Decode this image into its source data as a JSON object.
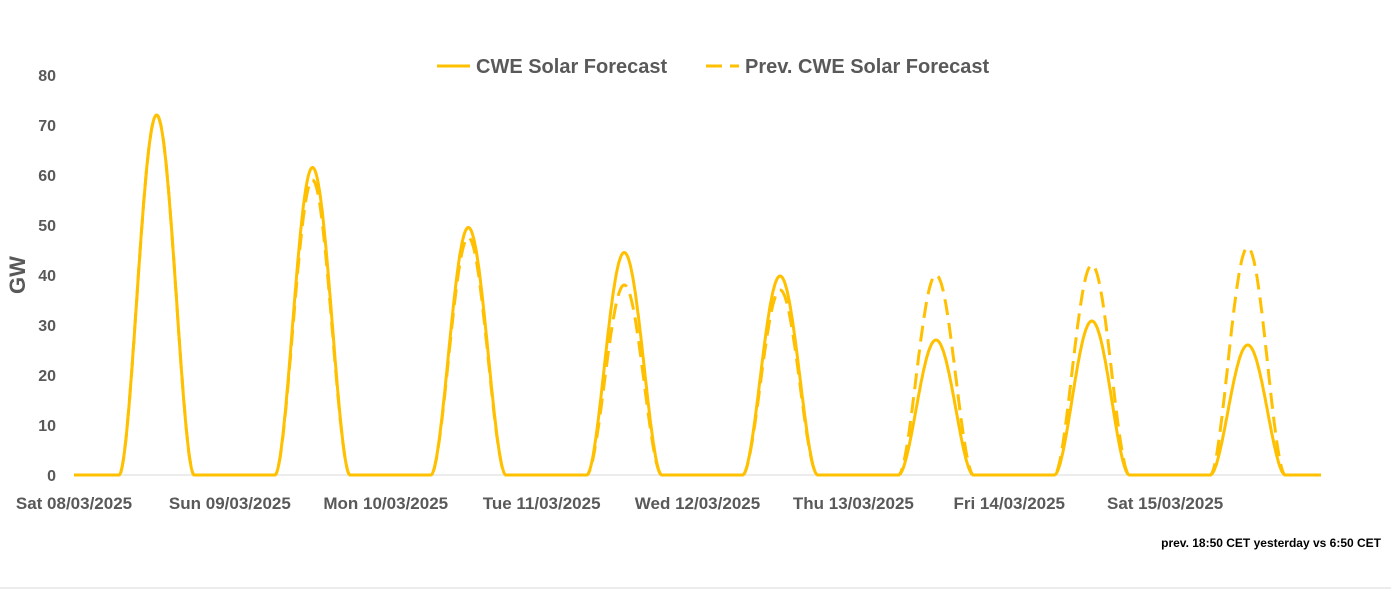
{
  "chart_data": {
    "type": "line",
    "ylabel": "GW",
    "ylim": [
      0,
      80
    ],
    "yticks": [
      0,
      10,
      20,
      30,
      40,
      50,
      60,
      70,
      80
    ],
    "x_ticks": [
      "Sat 08/03/2025",
      "Sun 09/03/2025",
      "Mon 10/03/2025",
      "Tue 11/03/2025",
      "Wed 12/03/2025",
      "Thu 13/03/2025",
      "Fri 14/03/2025",
      "Sat 15/03/2025"
    ],
    "xlim_days": 8,
    "grid": false,
    "legend_position": "top-center",
    "note": "prev. 18:50 CET yesterday vs  6:50 CET",
    "series": [
      {
        "name": "CWE Solar Forecast",
        "style": "solid",
        "color": "#FFC000",
        "daily_peaks": [
          {
            "day": "Sat 08/03/2025",
            "peak_gw": 72
          },
          {
            "day": "Sun 09/03/2025",
            "peak_gw": 61.5
          },
          {
            "day": "Mon 10/03/2025",
            "peak_gw": 49.5
          },
          {
            "day": "Tue 11/03/2025",
            "peak_gw": 44.5
          },
          {
            "day": "Wed 12/03/2025",
            "peak_gw": 39.8
          },
          {
            "day": "Thu 13/03/2025",
            "peak_gw": 27
          },
          {
            "day": "Fri 14/03/2025",
            "peak_gw": 30.8
          },
          {
            "day": "Sat 15/03/2025",
            "peak_gw": 26
          }
        ]
      },
      {
        "name": "Prev. CWE Solar Forecast",
        "style": "dashed",
        "color": "#FFC000",
        "daily_peaks": [
          {
            "day": "Sat 08/03/2025",
            "peak_gw": 72
          },
          {
            "day": "Sun 09/03/2025",
            "peak_gw": 59
          },
          {
            "day": "Mon 10/03/2025",
            "peak_gw": 47.5
          },
          {
            "day": "Tue 11/03/2025",
            "peak_gw": 38
          },
          {
            "day": "Wed 12/03/2025",
            "peak_gw": 37
          },
          {
            "day": "Thu 13/03/2025",
            "peak_gw": 40
          },
          {
            "day": "Fri 14/03/2025",
            "peak_gw": 42
          },
          {
            "day": "Sat 15/03/2025",
            "peak_gw": 45.5
          }
        ]
      }
    ]
  }
}
